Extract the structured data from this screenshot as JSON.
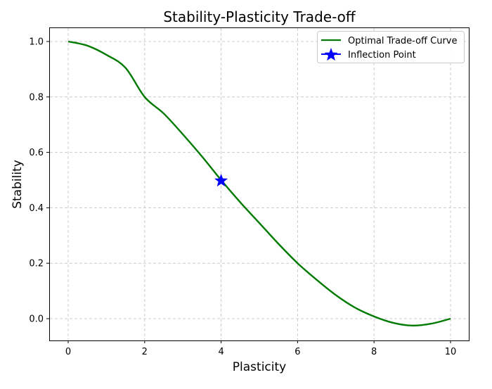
{
  "chart_data": {
    "type": "line",
    "title": "Stability-Plasticity Trade-off",
    "xlabel": "Plasticity",
    "ylabel": "Stability",
    "xlim": [
      -0.5,
      10.5
    ],
    "ylim": [
      -0.08,
      1.05
    ],
    "xticks": [
      0,
      2,
      4,
      6,
      8,
      10
    ],
    "xtick_labels": [
      "0",
      "2",
      "4",
      "6",
      "8",
      "10"
    ],
    "yticks": [
      0.0,
      0.2,
      0.4,
      0.6,
      0.8,
      1.0
    ],
    "ytick_labels": [
      "0.0",
      "0.2",
      "0.4",
      "0.6",
      "0.8",
      "1.0"
    ],
    "grid": true,
    "grid_style": "dashed",
    "legend_position": "upper right",
    "series": [
      {
        "name": "Optimal Trade-off Curve",
        "color": "#007a00",
        "x": [
          0,
          0.5,
          1,
          1.5,
          2,
          2.5,
          3,
          3.5,
          4,
          4.5,
          5,
          5.5,
          6,
          6.5,
          7,
          7.5,
          8,
          8.5,
          9,
          9.5,
          10
        ],
        "y": [
          1.0,
          0.985,
          0.952,
          0.905,
          0.8,
          0.74,
          0.665,
          0.585,
          0.5,
          0.42,
          0.345,
          0.27,
          0.2,
          0.14,
          0.085,
          0.04,
          0.008,
          -0.015,
          -0.025,
          -0.018,
          0.0
        ]
      }
    ],
    "annotations": [
      {
        "name": "Inflection Point",
        "marker": "star",
        "color": "#0000ff",
        "x": 4,
        "y": 0.5
      }
    ]
  },
  "legend": {
    "items": [
      {
        "label": "Optimal Trade-off Curve",
        "type": "line",
        "color": "#007a00"
      },
      {
        "label": "Inflection Point",
        "type": "star",
        "color": "#0000ff"
      }
    ]
  }
}
